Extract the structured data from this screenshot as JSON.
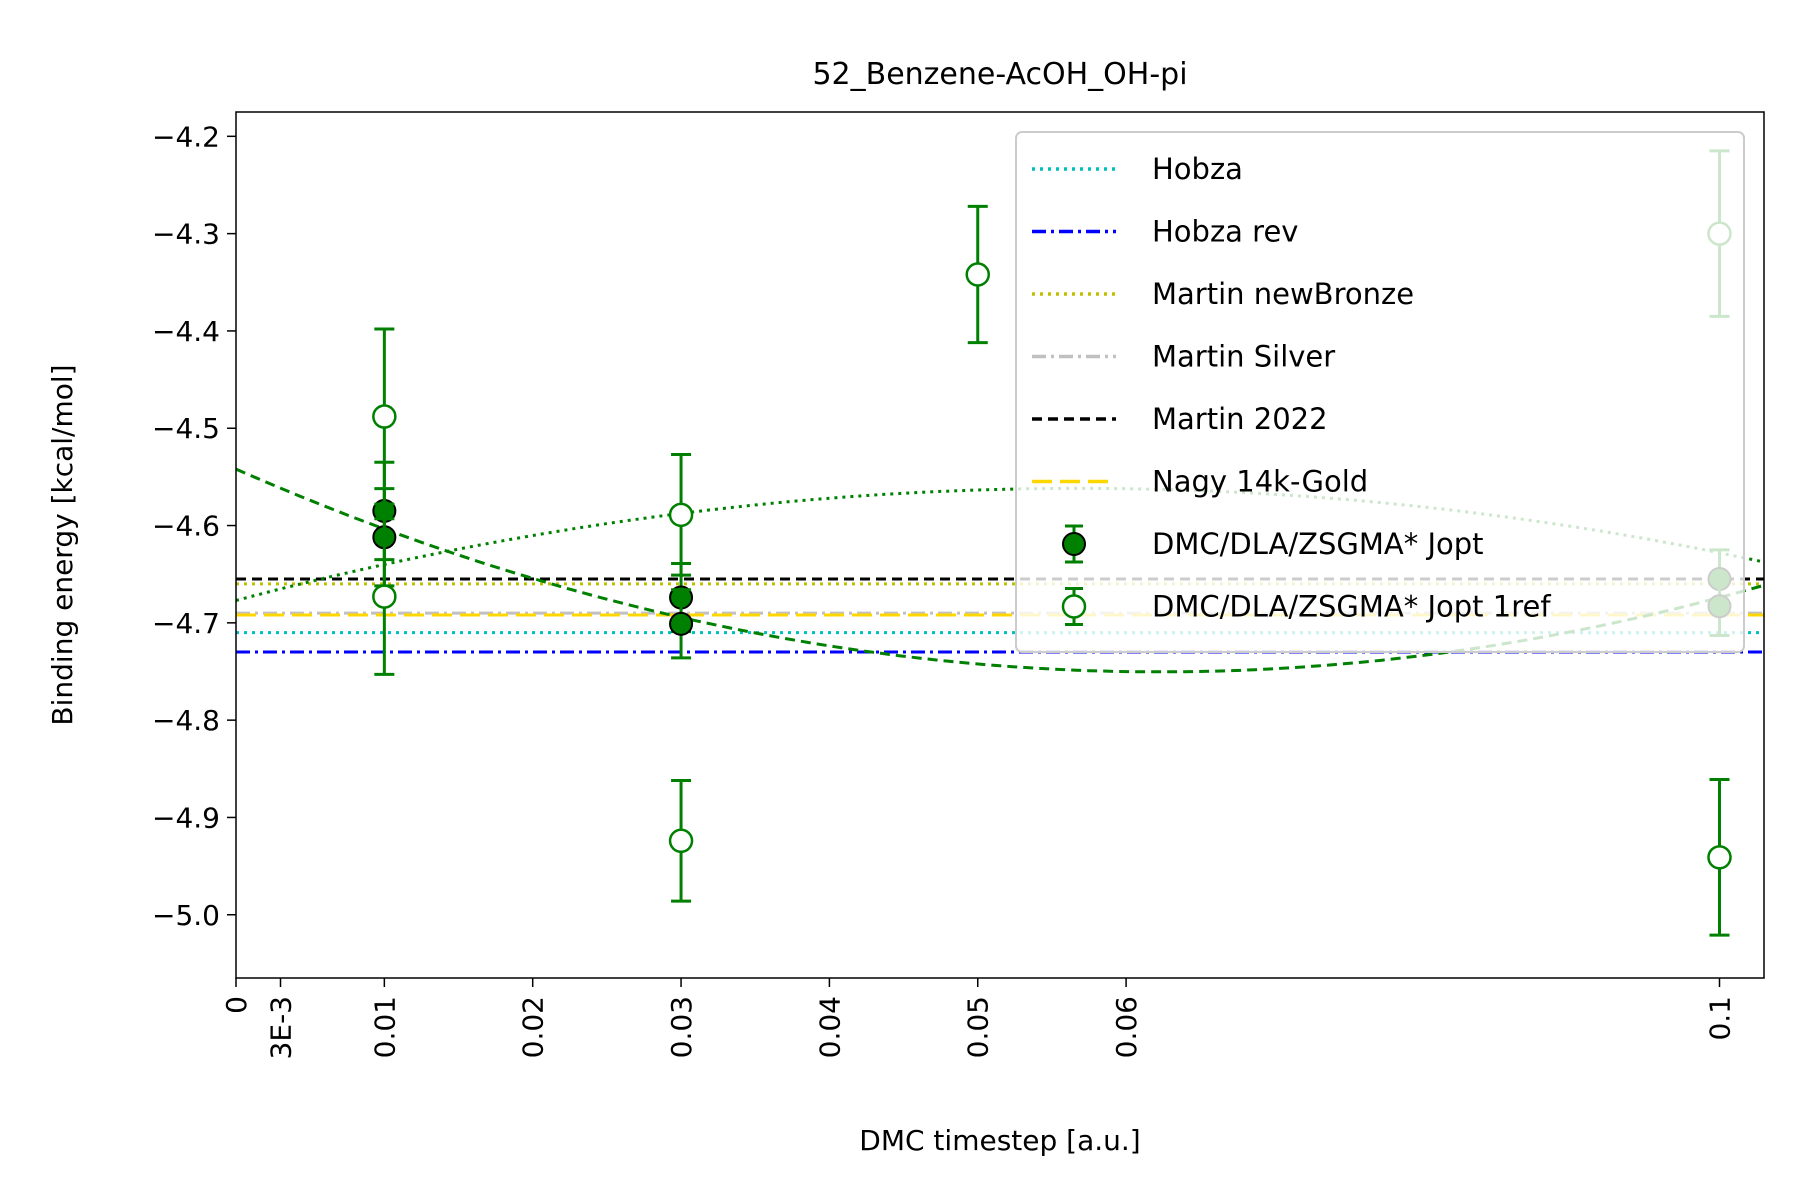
{
  "chart_data": {
    "type": "scatter",
    "title": "52_Benzene-AcOH_OH-pi",
    "xlabel": "DMC timestep [a.u.]",
    "ylabel": "Binding energy [kcal/mol]",
    "xlim": [
      0,
      0.103
    ],
    "ylim": [
      -5.065,
      -4.175
    ],
    "x_ticks": [
      {
        "value": 0,
        "label": "0"
      },
      {
        "value": 0.003,
        "label": "3E-3"
      },
      {
        "value": 0.01,
        "label": "0.01"
      },
      {
        "value": 0.02,
        "label": "0.02"
      },
      {
        "value": 0.03,
        "label": "0.03"
      },
      {
        "value": 0.04,
        "label": "0.04"
      },
      {
        "value": 0.05,
        "label": "0.05"
      },
      {
        "value": 0.06,
        "label": "0.06"
      },
      {
        "value": 0.1,
        "label": "0.1"
      }
    ],
    "y_ticks": [
      {
        "value": -4.2,
        "label": "−4.2"
      },
      {
        "value": -4.3,
        "label": "−4.3"
      },
      {
        "value": -4.4,
        "label": "−4.4"
      },
      {
        "value": -4.5,
        "label": "−4.5"
      },
      {
        "value": -4.6,
        "label": "−4.6"
      },
      {
        "value": -4.7,
        "label": "−4.7"
      },
      {
        "value": -4.8,
        "label": "−4.8"
      },
      {
        "value": -4.9,
        "label": "−4.9"
      },
      {
        "value": -5.0,
        "label": "−5.0"
      }
    ],
    "reference_lines": [
      {
        "name": "Hobza",
        "y": -4.71,
        "color": "#00bfbf",
        "style": "dotted"
      },
      {
        "name": "Hobza rev",
        "y": -4.73,
        "color": "#0000ff",
        "style": "dashdot"
      },
      {
        "name": "Martin newBronze",
        "y": -4.66,
        "color": "#bfbf00",
        "style": "dotted"
      },
      {
        "name": "Martin Silver",
        "y": -4.69,
        "color": "#c0c0c0",
        "style": "dashdot"
      },
      {
        "name": "Martin 2022",
        "y": -4.655,
        "color": "#000000",
        "style": "dashed"
      },
      {
        "name": "Nagy 14k-Gold",
        "y": -4.692,
        "color": "#ffd700",
        "style": "longdash"
      }
    ],
    "series": [
      {
        "name": "DMC/DLA/ZSGMA* Jopt",
        "marker": "filled",
        "color": "#008000",
        "points": [
          {
            "x": 0.01,
            "y": -4.585,
            "err": 0.05
          },
          {
            "x": 0.01,
            "y": -4.612,
            "err": 0.05
          },
          {
            "x": 0.03,
            "y": -4.674,
            "err": 0.035
          },
          {
            "x": 0.03,
            "y": -4.701,
            "err": 0.035
          },
          {
            "x": 0.1,
            "y": -4.655,
            "err": 0.03
          },
          {
            "x": 0.1,
            "y": -4.683,
            "err": 0.03
          }
        ]
      },
      {
        "name": "DMC/DLA/ZSGMA* Jopt 1ref",
        "marker": "open",
        "color": "#008000",
        "points": [
          {
            "x": 0.01,
            "y": -4.488,
            "err": 0.09
          },
          {
            "x": 0.01,
            "y": -4.673,
            "err": 0.08
          },
          {
            "x": 0.03,
            "y": -4.589,
            "err": 0.062
          },
          {
            "x": 0.03,
            "y": -4.924,
            "err": 0.062
          },
          {
            "x": 0.05,
            "y": -4.342,
            "err": 0.07
          },
          {
            "x": 0.1,
            "y": -4.3,
            "err": 0.085
          },
          {
            "x": 0.1,
            "y": -4.941,
            "err": 0.08
          }
        ]
      }
    ],
    "fit_curves": [
      {
        "style": "dashed",
        "color": "#008000",
        "coeffs": [
          -4.542,
          -6.69,
          53.7
        ]
      },
      {
        "style": "dotted",
        "color": "#008000",
        "coeffs": [
          -4.677,
          4.05,
          -35.6
        ]
      }
    ],
    "legend": {
      "position": "upper right",
      "entries": [
        "Hobza",
        "Hobza rev",
        "Martin newBronze",
        "Martin Silver",
        "Martin 2022",
        "Nagy 14k-Gold",
        "DMC/DLA/ZSGMA* Jopt",
        "DMC/DLA/ZSGMA* Jopt 1ref"
      ]
    }
  }
}
